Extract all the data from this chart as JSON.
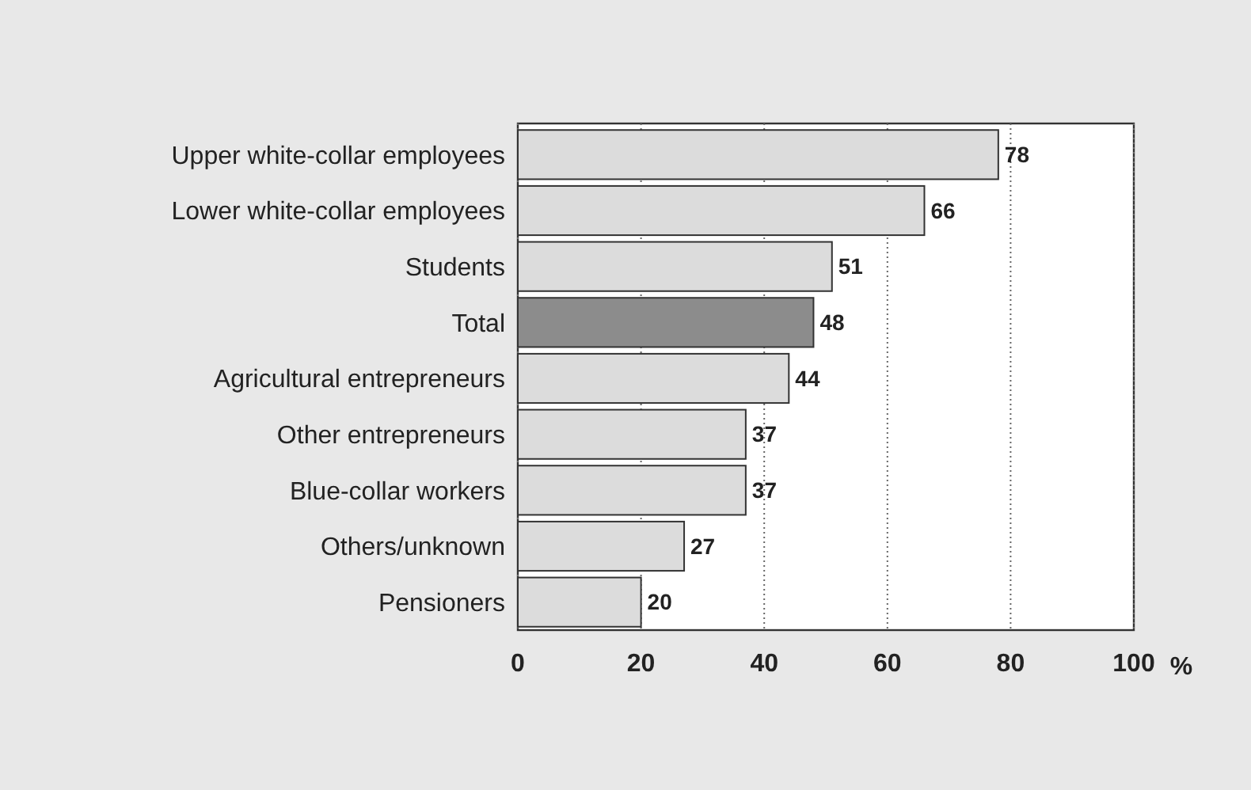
{
  "chart_data": {
    "type": "bar",
    "orientation": "horizontal",
    "xlabel": "%",
    "categories": [
      "Upper white-collar employees",
      "Lower white-collar employees",
      "Students",
      "Total",
      "Agricultural entrepreneurs",
      "Other entrepreneurs",
      "Blue-collar workers",
      "Others/unknown",
      "Pensioners"
    ],
    "values": [
      78,
      66,
      51,
      48,
      44,
      37,
      37,
      27,
      20
    ],
    "colors": [
      "#dcdcdc",
      "#dcdcdc",
      "#dcdcdc",
      "#8c8c8c",
      "#dcdcdc",
      "#dcdcdc",
      "#dcdcdc",
      "#dcdcdc",
      "#dcdcdc"
    ],
    "xlim": [
      0,
      100
    ],
    "xticks": [
      0,
      20,
      40,
      60,
      80,
      100
    ],
    "grid": "x",
    "data_labels": true
  }
}
